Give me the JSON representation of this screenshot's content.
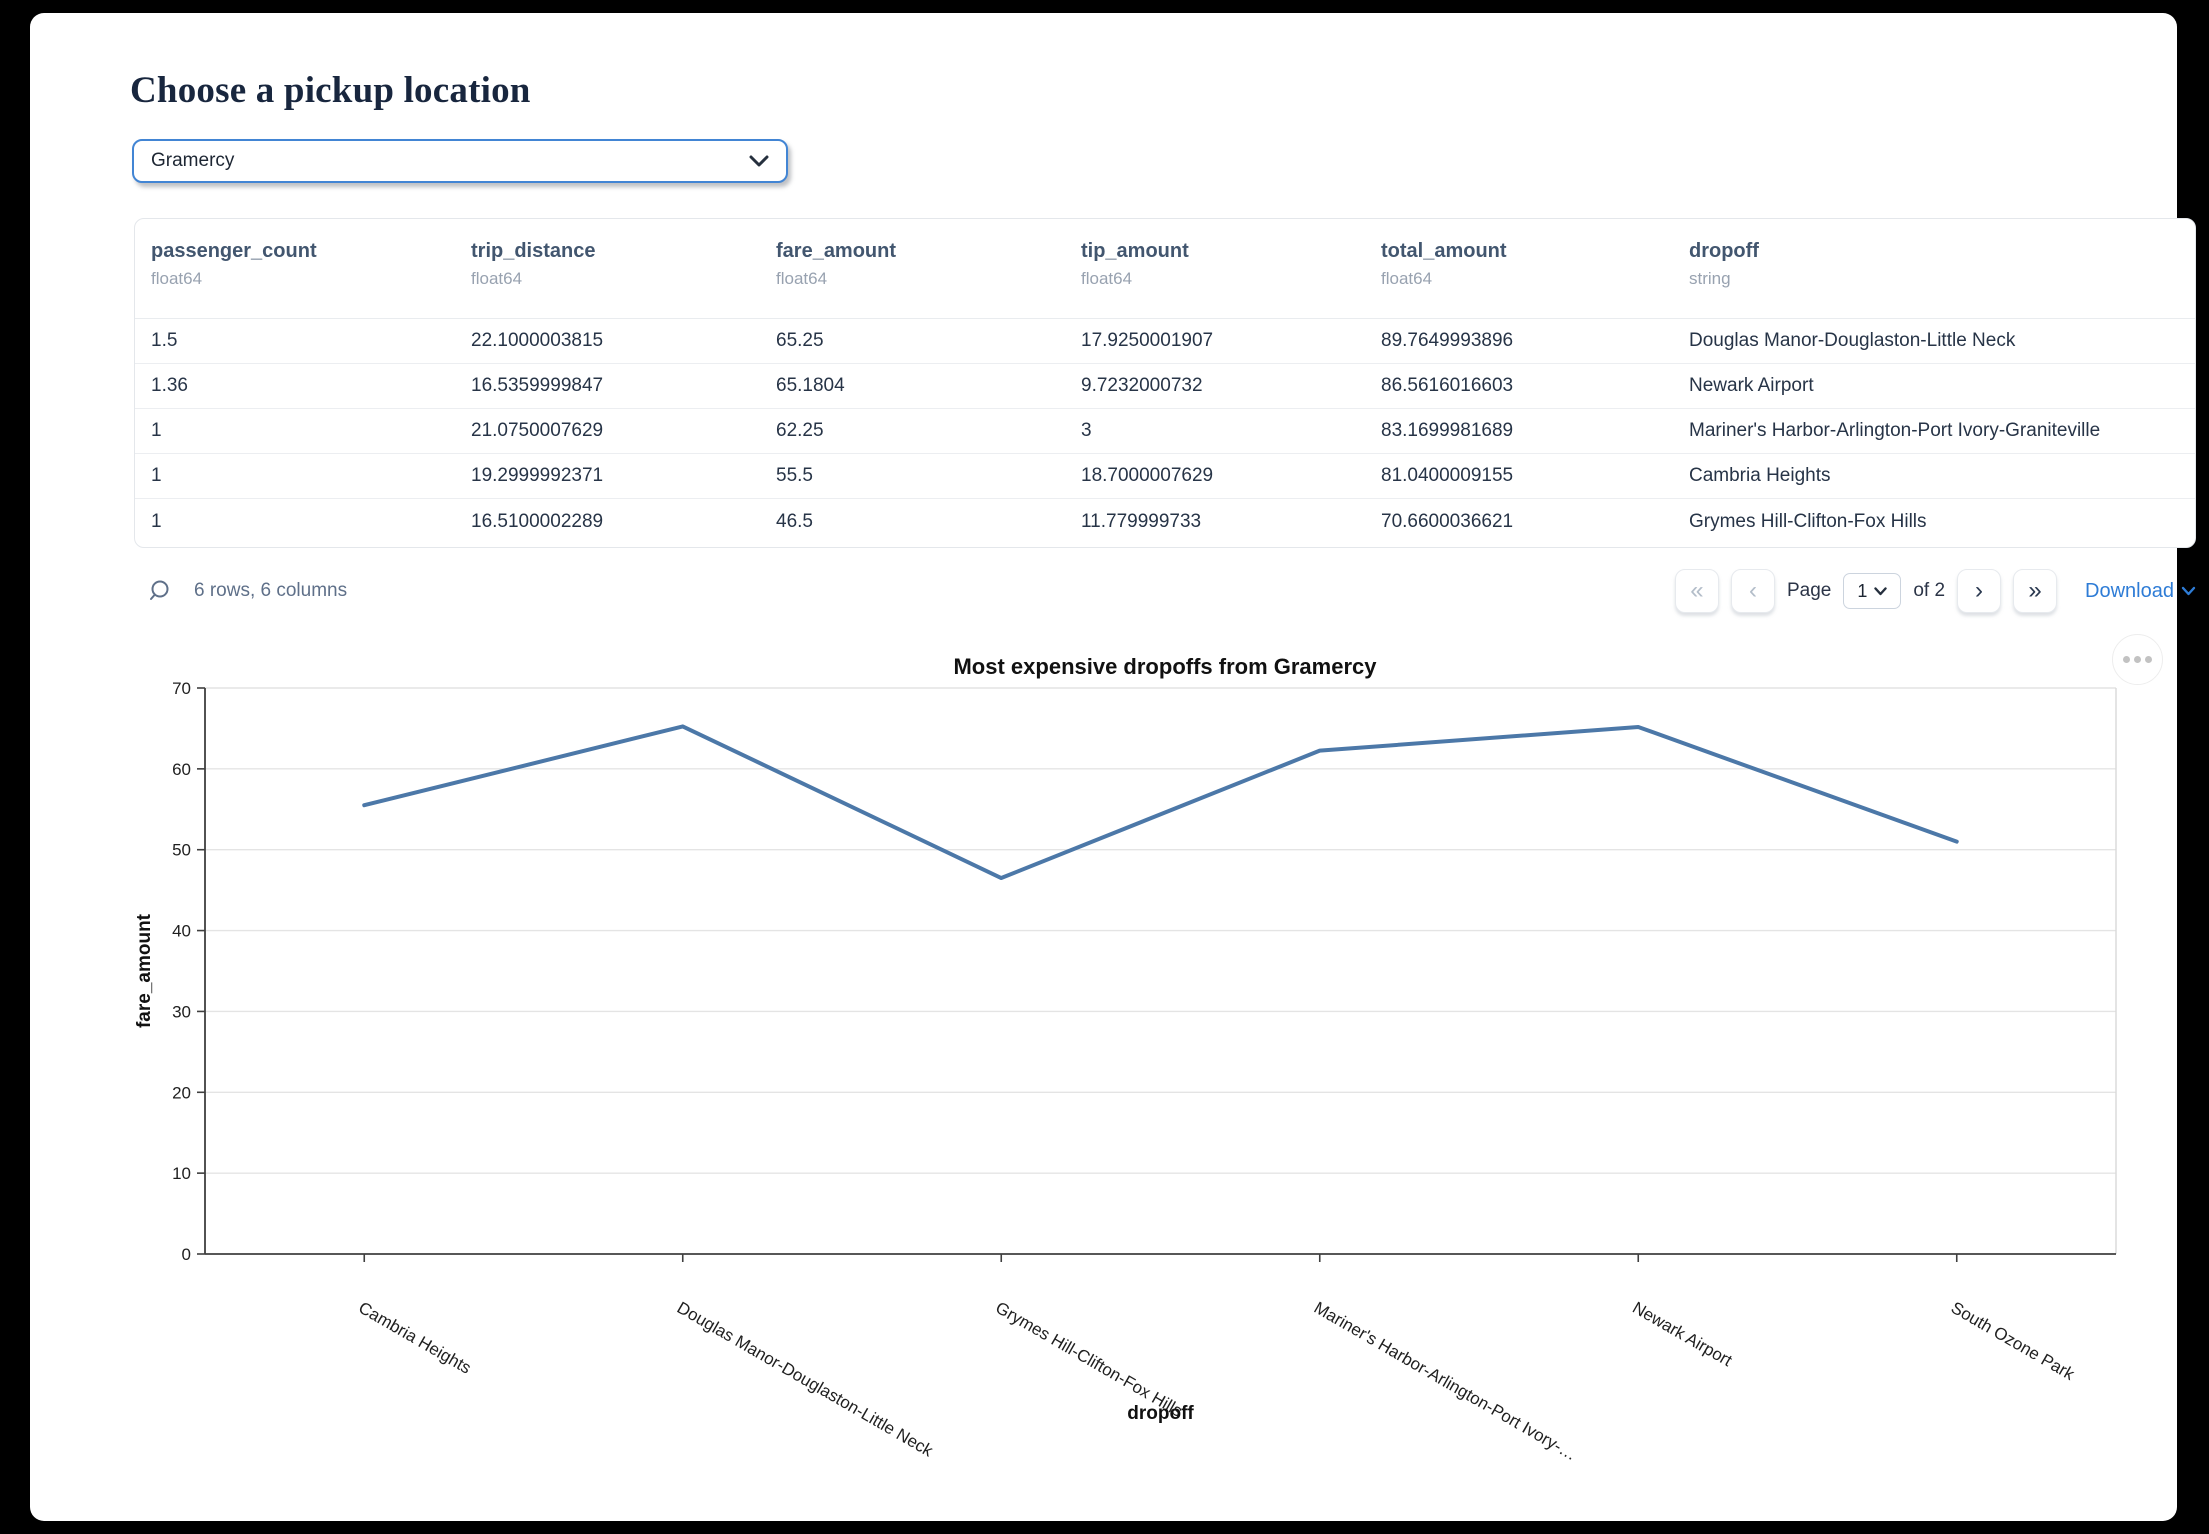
{
  "colors": {
    "accent_blue": "#4285d4",
    "link_blue": "#2e7cd6",
    "line_blue": "#4c78a8"
  },
  "header": {
    "title": "Choose a pickup location"
  },
  "pickup_select": {
    "value": "Gramercy"
  },
  "table": {
    "columns": [
      {
        "name": "passenger_count",
        "dtype": "float64"
      },
      {
        "name": "trip_distance",
        "dtype": "float64"
      },
      {
        "name": "fare_amount",
        "dtype": "float64"
      },
      {
        "name": "tip_amount",
        "dtype": "float64"
      },
      {
        "name": "total_amount",
        "dtype": "float64"
      },
      {
        "name": "dropoff",
        "dtype": "string"
      }
    ],
    "rows": [
      [
        "1.5",
        "22.1000003815",
        "65.25",
        "17.9250001907",
        "89.7649993896",
        "Douglas Manor-Douglaston-Little Neck"
      ],
      [
        "1.36",
        "16.5359999847",
        "65.1804",
        "9.7232000732",
        "86.5616016603",
        "Newark Airport"
      ],
      [
        "1",
        "21.0750007629",
        "62.25",
        "3",
        "83.1699981689",
        "Mariner's Harbor-Arlington-Port Ivory-Graniteville"
      ],
      [
        "1",
        "19.2999992371",
        "55.5",
        "18.7000007629",
        "81.0400009155",
        "Cambria Heights"
      ],
      [
        "1",
        "16.5100002289",
        "46.5",
        "11.779999733",
        "70.6600036621",
        "Grymes Hill-Clifton-Fox Hills"
      ]
    ],
    "footer": {
      "summary": "6 rows, 6 columns",
      "pagination": {
        "first": "«",
        "prev": "‹",
        "page_label": "Page",
        "page_value": "1",
        "of_label": "of 2",
        "next": "›",
        "last": "»"
      },
      "download_label": "Download"
    }
  },
  "chart_data": {
    "type": "line",
    "title": "Most expensive dropoffs from Gramercy",
    "xlabel": "dropoff",
    "ylabel": "fare_amount",
    "categories": [
      "Cambria Heights",
      "Douglas Manor-Douglaston-Little Neck",
      "Grymes Hill-Clifton-Fox Hills",
      "Mariner's Harbor-Arlington-Port Ivory-…",
      "Newark Airport",
      "South Ozone Park"
    ],
    "values": [
      55.5,
      65.25,
      46.5,
      62.25,
      65.1804,
      51
    ],
    "ylim": [
      0,
      70
    ],
    "yticks": [
      0,
      10,
      20,
      30,
      40,
      50,
      60,
      70
    ],
    "grid": true,
    "legend": false,
    "line_color": "#4c78a8",
    "x_label_angle": 30
  }
}
